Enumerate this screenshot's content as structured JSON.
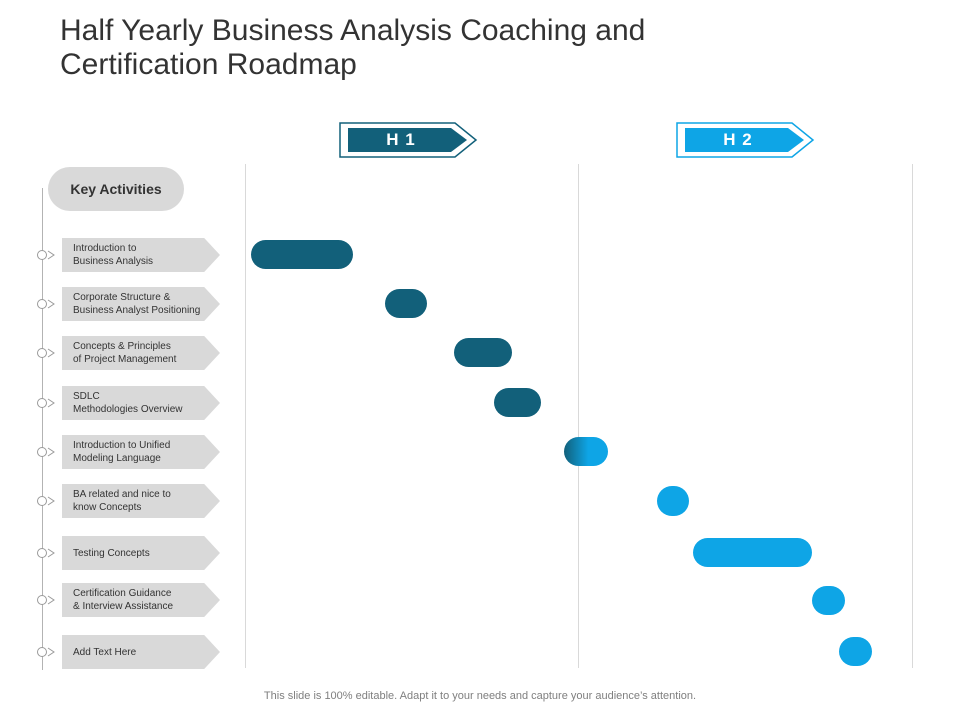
{
  "title": {
    "line1": "Half Yearly Business Analysis Coaching and",
    "line2": "Certification Roadmap"
  },
  "phases": [
    {
      "label": "H 1",
      "color": "#12607a"
    },
    {
      "label": "H 2",
      "color": "#0ea5e6"
    }
  ],
  "key_activities_label": "Key Activities",
  "activities": [
    {
      "line1": "Introduction to",
      "line2": "Business Analysis",
      "color": "#12607a"
    },
    {
      "line1": "Corporate Structure &",
      "line2": "Business Analyst Positioning",
      "color": "#12607a"
    },
    {
      "line1": "Concepts & Principles",
      "line2": "of Project Management",
      "color": "#12607a"
    },
    {
      "line1": "SDLC",
      "line2": "Methodologies  Overview",
      "color": "#12607a"
    },
    {
      "line1": "Introduction to Unified",
      "line2": "Modeling Language",
      "color": "#0ea5e6"
    },
    {
      "line1": "BA related and nice to",
      "line2": "know Concepts",
      "color": "#0ea5e6"
    },
    {
      "line1": "Testing Concepts",
      "line2": "",
      "color": "#0ea5e6"
    },
    {
      "line1": "Certification Guidance",
      "line2": "& Interview Assistance",
      "color": "#0ea5e6"
    },
    {
      "line1": "Add Text Here",
      "line2": "",
      "color": "#0ea5e6"
    }
  ],
  "footer": "This slide is 100% editable. Adapt it to your needs and capture your audience’s attention."
}
